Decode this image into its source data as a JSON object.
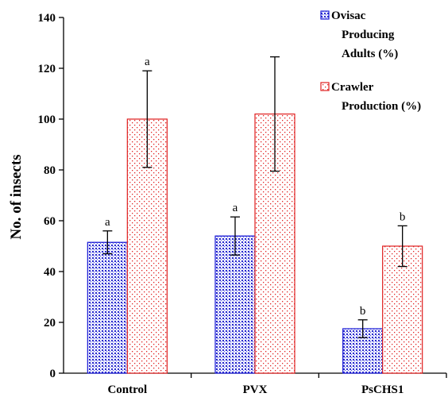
{
  "chart_data": {
    "type": "bar",
    "categories": [
      "Control",
      "PVX",
      "PsCHS1"
    ],
    "ylabel": "No. of insects",
    "xlabel": "",
    "ylim": [
      0,
      140
    ],
    "yticks": [
      0,
      20,
      40,
      60,
      80,
      100,
      120,
      140
    ],
    "grid": false,
    "legend_position": "top-right",
    "series": [
      {
        "name": "Ovisac Producing Adults (%)",
        "legend_lines": [
          "Ovisac",
          "Producing",
          "Adults (%)"
        ],
        "color": "#1a1ad6",
        "fill_pattern": "dense-dots",
        "values": [
          51.5,
          54,
          17.5
        ],
        "errors": [
          4.5,
          7.5,
          3.5
        ],
        "labels": [
          "a",
          "a",
          "b"
        ]
      },
      {
        "name": "Crawler Production (%)",
        "legend_lines": [
          "Crawler",
          "Production (%)"
        ],
        "color": "#e02020",
        "fill_pattern": "sparse-dots",
        "values": [
          100,
          102,
          50
        ],
        "errors": [
          19,
          22.5,
          8
        ],
        "labels": [
          "a",
          "",
          "b"
        ]
      }
    ]
  }
}
